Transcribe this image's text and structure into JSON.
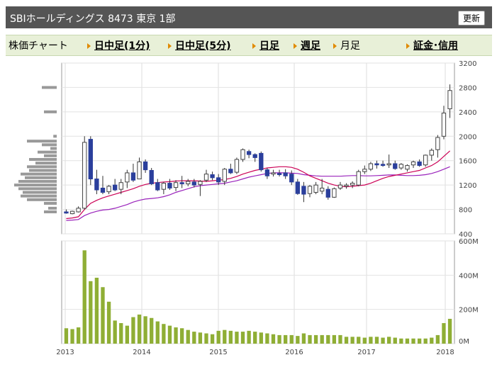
{
  "header": {
    "title": "SBIホールディングス  8473  東京 1部",
    "refresh_label": "更新"
  },
  "tabs": [
    {
      "label": "株価チャート",
      "link": false,
      "arrow": false
    },
    {
      "label": "日中足(1分)",
      "link": true,
      "arrow": true
    },
    {
      "label": "日中足(5分)",
      "link": true,
      "arrow": true
    },
    {
      "label": "日足",
      "link": true,
      "arrow": true
    },
    {
      "label": "週足",
      "link": true,
      "arrow": true
    },
    {
      "label": "月足",
      "link": false,
      "arrow": true
    },
    {
      "label": "証金･信用",
      "link": true,
      "arrow": true
    }
  ],
  "chart_data": [
    {
      "type": "candlestick",
      "ylim": [
        400,
        3200
      ],
      "yticks": [
        400,
        800,
        1200,
        1600,
        2000,
        2400,
        2800,
        3200
      ],
      "xticks": [
        "2013",
        "2014",
        "2015",
        "2016",
        "2017",
        "2018"
      ],
      "ma_colors": {
        "short": "#cc0055",
        "long": "#9922bb"
      },
      "up_color": "#2b3f9c",
      "down_color": "#2b3f9c",
      "candles": [
        {
          "o": 760,
          "h": 800,
          "l": 730,
          "c": 740
        },
        {
          "o": 730,
          "h": 780,
          "l": 720,
          "c": 770
        },
        {
          "o": 760,
          "h": 850,
          "l": 750,
          "c": 820
        },
        {
          "o": 820,
          "h": 2000,
          "l": 800,
          "c": 1900
        },
        {
          "o": 1950,
          "h": 2000,
          "l": 1200,
          "c": 1300
        },
        {
          "o": 1300,
          "h": 1450,
          "l": 1050,
          "c": 1120
        },
        {
          "o": 1150,
          "h": 1350,
          "l": 1050,
          "c": 1080
        },
        {
          "o": 1090,
          "h": 1200,
          "l": 1050,
          "c": 1180
        },
        {
          "o": 1200,
          "h": 1300,
          "l": 1100,
          "c": 1120
        },
        {
          "o": 1130,
          "h": 1300,
          "l": 1050,
          "c": 1240
        },
        {
          "o": 1250,
          "h": 1450,
          "l": 1150,
          "c": 1400
        },
        {
          "o": 1400,
          "h": 1550,
          "l": 1250,
          "c": 1280
        },
        {
          "o": 1300,
          "h": 1650,
          "l": 1300,
          "c": 1580
        },
        {
          "o": 1580,
          "h": 1620,
          "l": 1400,
          "c": 1450
        },
        {
          "o": 1440,
          "h": 1480,
          "l": 1200,
          "c": 1220
        },
        {
          "o": 1240,
          "h": 1300,
          "l": 1100,
          "c": 1120
        },
        {
          "o": 1130,
          "h": 1250,
          "l": 1050,
          "c": 1230
        },
        {
          "o": 1230,
          "h": 1300,
          "l": 1120,
          "c": 1150
        },
        {
          "o": 1160,
          "h": 1280,
          "l": 1100,
          "c": 1240
        },
        {
          "o": 1240,
          "h": 1350,
          "l": 1150,
          "c": 1220
        },
        {
          "o": 1220,
          "h": 1300,
          "l": 1180,
          "c": 1260
        },
        {
          "o": 1250,
          "h": 1300,
          "l": 1160,
          "c": 1200
        },
        {
          "o": 1210,
          "h": 1280,
          "l": 1020,
          "c": 1260
        },
        {
          "o": 1280,
          "h": 1450,
          "l": 1250,
          "c": 1380
        },
        {
          "o": 1370,
          "h": 1420,
          "l": 1280,
          "c": 1320
        },
        {
          "o": 1320,
          "h": 1380,
          "l": 1200,
          "c": 1250
        },
        {
          "o": 1260,
          "h": 1480,
          "l": 1200,
          "c": 1460
        },
        {
          "o": 1460,
          "h": 1550,
          "l": 1380,
          "c": 1400
        },
        {
          "o": 1410,
          "h": 1650,
          "l": 1380,
          "c": 1620
        },
        {
          "o": 1620,
          "h": 1800,
          "l": 1580,
          "c": 1780
        },
        {
          "o": 1750,
          "h": 1780,
          "l": 1640,
          "c": 1700
        },
        {
          "o": 1700,
          "h": 1720,
          "l": 1580,
          "c": 1650
        },
        {
          "o": 1720,
          "h": 1750,
          "l": 1420,
          "c": 1450
        },
        {
          "o": 1450,
          "h": 1480,
          "l": 1300,
          "c": 1350
        },
        {
          "o": 1380,
          "h": 1450,
          "l": 1340,
          "c": 1400
        },
        {
          "o": 1390,
          "h": 1450,
          "l": 1340,
          "c": 1370
        },
        {
          "o": 1400,
          "h": 1460,
          "l": 1300,
          "c": 1350
        },
        {
          "o": 1380,
          "h": 1440,
          "l": 1200,
          "c": 1250
        },
        {
          "o": 1250,
          "h": 1300,
          "l": 1040,
          "c": 1060
        },
        {
          "o": 1180,
          "h": 1250,
          "l": 920,
          "c": 1050
        },
        {
          "o": 1060,
          "h": 1200,
          "l": 1000,
          "c": 1180
        },
        {
          "o": 1080,
          "h": 1250,
          "l": 1050,
          "c": 1200
        },
        {
          "o": 1100,
          "h": 1300,
          "l": 1050,
          "c": 1150
        },
        {
          "o": 1130,
          "h": 1180,
          "l": 960,
          "c": 1000
        },
        {
          "o": 1000,
          "h": 1160,
          "l": 990,
          "c": 1140
        },
        {
          "o": 1150,
          "h": 1250,
          "l": 1120,
          "c": 1200
        },
        {
          "o": 1180,
          "h": 1230,
          "l": 1140,
          "c": 1200
        },
        {
          "o": 1200,
          "h": 1260,
          "l": 1150,
          "c": 1230
        },
        {
          "o": 1200,
          "h": 1450,
          "l": 1180,
          "c": 1420
        },
        {
          "o": 1420,
          "h": 1520,
          "l": 1380,
          "c": 1460
        },
        {
          "o": 1460,
          "h": 1580,
          "l": 1430,
          "c": 1550
        },
        {
          "o": 1550,
          "h": 1600,
          "l": 1470,
          "c": 1530
        },
        {
          "o": 1540,
          "h": 1600,
          "l": 1500,
          "c": 1520
        },
        {
          "o": 1530,
          "h": 1700,
          "l": 1480,
          "c": 1550
        },
        {
          "o": 1550,
          "h": 1600,
          "l": 1450,
          "c": 1470
        },
        {
          "o": 1480,
          "h": 1560,
          "l": 1450,
          "c": 1540
        },
        {
          "o": 1460,
          "h": 1540,
          "l": 1420,
          "c": 1520
        },
        {
          "o": 1530,
          "h": 1600,
          "l": 1480,
          "c": 1580
        },
        {
          "o": 1580,
          "h": 1620,
          "l": 1500,
          "c": 1520
        },
        {
          "o": 1530,
          "h": 1700,
          "l": 1500,
          "c": 1690
        },
        {
          "o": 1690,
          "h": 1800,
          "l": 1600,
          "c": 1770
        },
        {
          "o": 1780,
          "h": 2020,
          "l": 1650,
          "c": 1980
        },
        {
          "o": 2000,
          "h": 2500,
          "l": 1950,
          "c": 2380
        },
        {
          "o": 2450,
          "h": 2850,
          "l": 2300,
          "c": 2750
        }
      ],
      "ma_short": [
        650,
        660,
        680,
        800,
        900,
        950,
        990,
        1020,
        1050,
        1080,
        1110,
        1140,
        1180,
        1210,
        1230,
        1240,
        1250,
        1255,
        1265,
        1270,
        1270,
        1270,
        1265,
        1260,
        1270,
        1280,
        1290,
        1310,
        1340,
        1380,
        1410,
        1440,
        1460,
        1480,
        1490,
        1500,
        1500,
        1490,
        1460,
        1410,
        1350,
        1310,
        1270,
        1230,
        1200,
        1180,
        1170,
        1180,
        1190,
        1200,
        1230,
        1270,
        1310,
        1340,
        1360,
        1380,
        1400,
        1420,
        1440,
        1480,
        1520,
        1580,
        1670,
        1760
      ],
      "ma_long": [
        620,
        625,
        635,
        700,
        740,
        770,
        790,
        800,
        820,
        850,
        880,
        920,
        950,
        970,
        980,
        990,
        1010,
        1040,
        1080,
        1110,
        1140,
        1170,
        1190,
        1200,
        1210,
        1220,
        1230,
        1250,
        1270,
        1300,
        1330,
        1350,
        1370,
        1390,
        1400,
        1400,
        1400,
        1395,
        1390,
        1370,
        1360,
        1350,
        1345,
        1345,
        1345,
        1345,
        1350,
        1355,
        1355,
        1350,
        1350,
        1355,
        1360,
        1365,
        1365,
        1360,
        1355,
        1355,
        1360,
        1370,
        1390,
        1420,
        1460,
        1500
      ],
      "volume_profile": [
        {
          "price": 2800,
          "w": 0.35
        },
        {
          "price": 2400,
          "w": 0.3
        },
        {
          "price": 2000,
          "w": 0.08
        },
        {
          "price": 1920,
          "w": 0.7
        },
        {
          "price": 1860,
          "w": 0.35
        },
        {
          "price": 1800,
          "w": 0.15
        },
        {
          "price": 1740,
          "w": 0.45
        },
        {
          "price": 1680,
          "w": 0.3
        },
        {
          "price": 1620,
          "w": 0.65
        },
        {
          "price": 1560,
          "w": 0.5
        },
        {
          "price": 1500,
          "w": 0.7
        },
        {
          "price": 1440,
          "w": 0.65
        },
        {
          "price": 1380,
          "w": 0.85
        },
        {
          "price": 1320,
          "w": 0.75
        },
        {
          "price": 1260,
          "w": 0.9
        },
        {
          "price": 1200,
          "w": 1.0
        },
        {
          "price": 1140,
          "w": 0.9
        },
        {
          "price": 1080,
          "w": 0.8
        },
        {
          "price": 1020,
          "w": 0.85
        },
        {
          "price": 960,
          "w": 0.7
        },
        {
          "price": 900,
          "w": 0.3
        },
        {
          "price": 820,
          "w": 0.2
        },
        {
          "price": 760,
          "w": 0.3
        }
      ]
    },
    {
      "type": "bar",
      "ylim": [
        0,
        600
      ],
      "yticks": [
        "0M",
        "200M",
        "400M",
        "600M"
      ],
      "bar_color": "#8fae35",
      "values": [
        90,
        85,
        95,
        545,
        365,
        385,
        330,
        245,
        135,
        120,
        105,
        155,
        170,
        160,
        150,
        130,
        115,
        105,
        95,
        90,
        80,
        70,
        65,
        60,
        55,
        75,
        80,
        75,
        70,
        70,
        75,
        70,
        65,
        60,
        55,
        50,
        50,
        50,
        45,
        60,
        50,
        50,
        50,
        50,
        50,
        50,
        40,
        40,
        40,
        35,
        40,
        40,
        35,
        40,
        35,
        30,
        30,
        30,
        30,
        30,
        35,
        50,
        120,
        145
      ]
    }
  ]
}
